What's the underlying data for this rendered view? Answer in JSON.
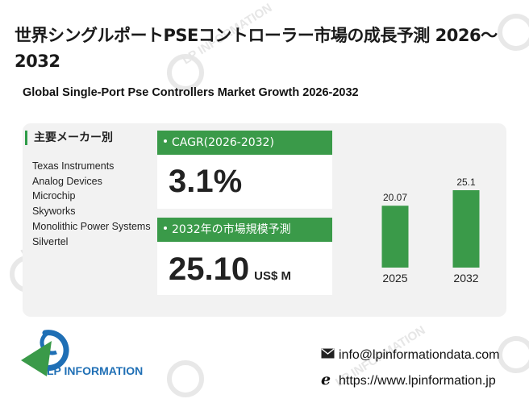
{
  "title_jp": "世界シングルポートPSEコントローラー市場の成長予測 2026～2032",
  "title_en": "Global Single-Port Pse Controllers Market Growth 2026-2032",
  "key_players": {
    "heading": "主要メーカー別",
    "companies": [
      "Texas Instruments",
      "Analog Devices",
      "Microchip",
      "Skyworks",
      "Monolithic Power Systems",
      "Silvertel"
    ]
  },
  "cagr_card": {
    "label": "CAGR(2026-2032)",
    "value": "3.1%"
  },
  "size_card": {
    "label": "2032年の市場規模予測",
    "value": "25.10",
    "unit": "US$ M"
  },
  "chart_data": {
    "type": "bar",
    "categories": [
      "2025",
      "2032"
    ],
    "values": [
      20.07,
      25.1
    ],
    "value_labels": [
      "20.07",
      "25.1"
    ],
    "bar_color": "#3a9a49"
  },
  "contact": {
    "email": "info@lpinformationdata.com",
    "website": "https://www.lpinformation.jp"
  },
  "logo_text": "LP INFORMATION",
  "watermark_text": "LP INFORMATION",
  "colors": {
    "accent": "#3a9a49",
    "panel": "#f2f2f2",
    "logo_blue": "#1f6fb5"
  }
}
